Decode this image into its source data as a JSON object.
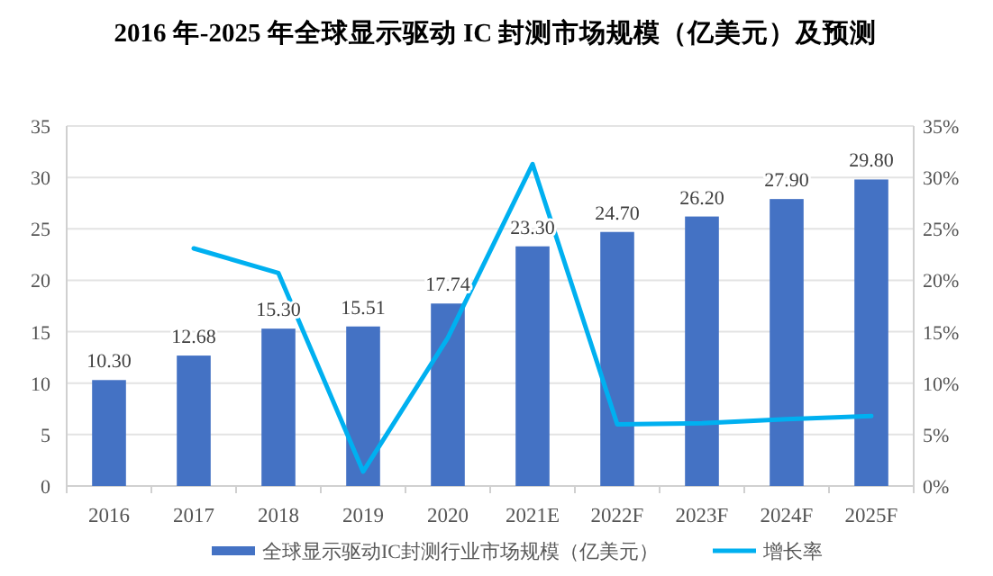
{
  "chart_data": {
    "type": "bar",
    "title": "2016 年-2025 年全球显示驱动 IC 封测市场规模（亿美元）及预测",
    "categories": [
      "2016",
      "2017",
      "2018",
      "2019",
      "2020",
      "2021E",
      "2022F",
      "2023F",
      "2024F",
      "2025F"
    ],
    "series": [
      {
        "name": "全球显示驱动IC封测行业市场规模（亿美元）",
        "color": "#4472c4",
        "values": [
          10.3,
          12.68,
          15.3,
          15.51,
          17.74,
          23.3,
          24.7,
          26.2,
          27.9,
          29.8
        ],
        "value_labels": [
          "10.30",
          "12.68",
          "15.30",
          "15.51",
          "17.74",
          "23.30",
          "24.70",
          "26.20",
          "27.90",
          "29.80"
        ]
      },
      {
        "name": "增长率",
        "type": "line",
        "axis": "y2",
        "color": "#00b0f0",
        "values": [
          null,
          23.1,
          20.7,
          1.4,
          14.4,
          31.3,
          6.0,
          6.1,
          6.5,
          6.8
        ]
      }
    ],
    "grid": "y",
    "legend": "bottom",
    "marker": "none",
    "line_style": "solid",
    "ylim": [
      0,
      35
    ],
    "yticks": [
      0,
      5,
      10,
      15,
      20,
      25,
      30,
      35
    ],
    "y2lim": [
      0,
      35
    ],
    "y2ticks": [
      {
        "value": 0,
        "label": "0%"
      },
      {
        "value": 5,
        "label": "5%"
      },
      {
        "value": 10,
        "label": "10%"
      },
      {
        "value": 15,
        "label": "15%"
      },
      {
        "value": 20,
        "label": "20%"
      },
      {
        "value": 25,
        "label": "25%"
      },
      {
        "value": 30,
        "label": "30%"
      },
      {
        "value": 35,
        "label": "35%"
      }
    ]
  }
}
